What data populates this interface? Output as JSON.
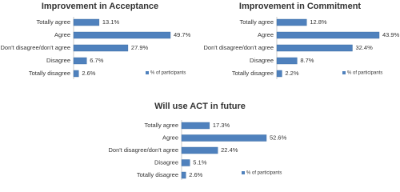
{
  "chart_data": [
    {
      "type": "bar",
      "orientation": "horizontal",
      "title": "Improvement in Acceptance",
      "categories": [
        "Totally agree",
        "Agree",
        "Don't disagree/don't agree",
        "Disagree",
        "Totally disagree"
      ],
      "series": [
        {
          "name": "% of participants",
          "color": "#4f81bd",
          "values": [
            13.1,
            49.7,
            27.9,
            6.7,
            2.6
          ],
          "value_labels": [
            "13.1%",
            "49.7%",
            "27.9%",
            "6.7%",
            "2.6%"
          ]
        }
      ],
      "legend": "bottom-right"
    },
    {
      "type": "bar",
      "orientation": "horizontal",
      "title": "Improvement in Commitment",
      "categories": [
        "Totally agree",
        "Agree",
        "Don't disagree/don't agree",
        "Disagree",
        "Totally disagree"
      ],
      "series": [
        {
          "name": "% of participants",
          "color": "#4f81bd",
          "values": [
            12.8,
            43.9,
            32.4,
            8.7,
            2.2
          ],
          "value_labels": [
            "12.8%",
            "43.9%",
            "32.4%",
            "8.7%",
            "2.2%"
          ]
        }
      ],
      "legend": "bottom-right"
    },
    {
      "type": "bar",
      "orientation": "horizontal",
      "title": "Will use ACT in future",
      "categories": [
        "Totally agree",
        "Agree",
        "Don't disagree/don't agree",
        "Disagree",
        "Totally disagree"
      ],
      "series": [
        {
          "name": "% of participants",
          "color": "#4f81bd",
          "values": [
            17.3,
            52.6,
            22.4,
            5.1,
            2.6
          ],
          "value_labels": [
            "17.3%",
            "52.6%",
            "22.4%",
            "5.1%",
            "2.6%"
          ]
        }
      ],
      "legend": "bottom-right"
    }
  ]
}
